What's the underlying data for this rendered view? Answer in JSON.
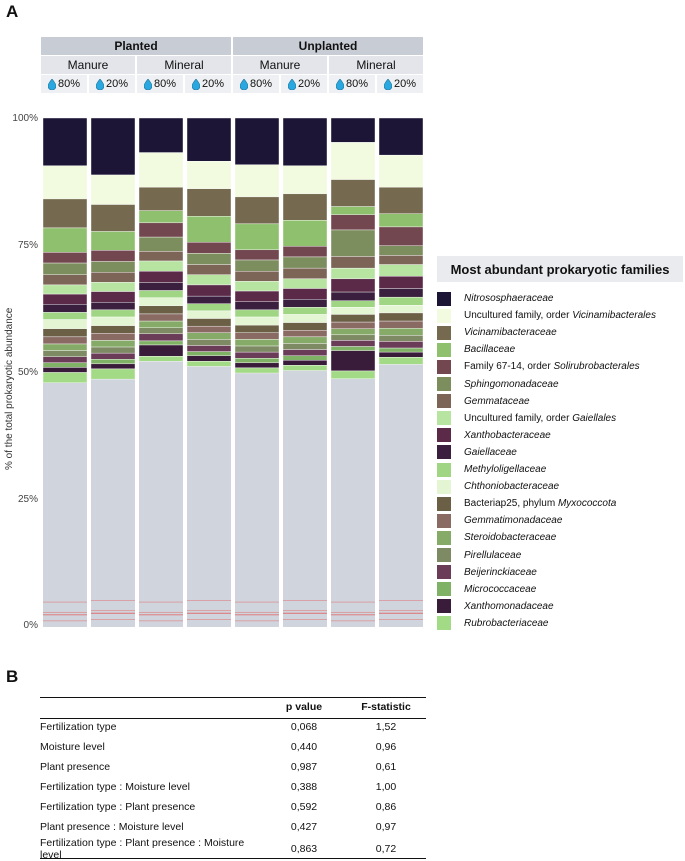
{
  "panels": {
    "a": "A",
    "b": "B"
  },
  "header": {
    "groups": [
      "Planted",
      "Unplanted"
    ],
    "fertilization": [
      "Manure",
      "Mineral",
      "Manure",
      "Mineral"
    ],
    "moisture": [
      "80%",
      "20%",
      "80%",
      "20%",
      "80%",
      "20%",
      "80%",
      "20%"
    ]
  },
  "colors": {
    "water_drop": "#29a8e0",
    "header_dark": "#c8ccd4",
    "header_light": "#e3e5ea",
    "other_gray": "#d0d4dc",
    "minor_lines": "#e07070"
  },
  "chart_data": {
    "type": "bar",
    "stacked": true,
    "ylabel": "% of the total prokaryotic abundance",
    "ylim": [
      0,
      100
    ],
    "yticks": [
      "0%",
      "25%",
      "50%",
      "75%",
      "100%"
    ],
    "legend_title": "Most abundant prokaryotic families",
    "legend_position": "right",
    "samples": [
      "Planted Manure 80%",
      "Planted Manure 20%",
      "Planted Mineral 80%",
      "Planted Mineral 20%",
      "Unplanted Manure 80%",
      "Unplanted Manure 20%",
      "Unplanted Mineral 80%",
      "Unplanted Mineral 20%"
    ],
    "series": [
      {
        "name": "Nitrososphaeraceae",
        "color": "#1d1535",
        "values": [
          9.4,
          11.2,
          6.8,
          8.5,
          9.2,
          9.4,
          4.8,
          7.3
        ]
      },
      {
        "name": "Uncultured family, order Vicinamibacterales",
        "color": "#f2fbdf",
        "values": [
          6.5,
          5.8,
          6.8,
          5.4,
          6.3,
          5.5,
          7.3,
          6.3
        ]
      },
      {
        "name": "Vicinamibacteraceae",
        "color": "#756a4f",
        "values": [
          5.7,
          5.3,
          4.6,
          5.4,
          5.3,
          5.2,
          5.3,
          5.2
        ]
      },
      {
        "name": "Bacillaceae",
        "color": "#8fc06e",
        "values": [
          4.8,
          3.7,
          2.4,
          5.1,
          5.1,
          5.1,
          1.6,
          2.6
        ]
      },
      {
        "name": "Family 67-14, order Solirubrobacterales",
        "color": "#72474f",
        "values": [
          2.1,
          2.2,
          2.8,
          2.2,
          2.0,
          2.1,
          3.0,
          3.7
        ]
      },
      {
        "name": "Sphingomonadaceae",
        "color": "#7d8e5e",
        "values": [
          2.3,
          2.1,
          2.8,
          2.2,
          2.2,
          2.2,
          5.2,
          1.9
        ]
      },
      {
        "name": "Gemmataceae",
        "color": "#7c6557",
        "values": [
          2.0,
          2.0,
          1.9,
          2.0,
          2.0,
          2.1,
          2.3,
          1.8
        ]
      },
      {
        "name": "Uncultured family, order Gaiellales",
        "color": "#b8e4a1",
        "values": [
          1.8,
          1.8,
          2.0,
          2.0,
          1.9,
          1.9,
          2.1,
          2.3
        ]
      },
      {
        "name": "Xanthobacteraceae",
        "color": "#5a2a48",
        "values": [
          2.0,
          2.1,
          2.2,
          2.2,
          2.1,
          2.1,
          2.6,
          2.4
        ]
      },
      {
        "name": "Gaiellaceae",
        "color": "#3a1f3e",
        "values": [
          1.6,
          1.5,
          1.6,
          1.5,
          1.6,
          1.6,
          1.7,
          1.7
        ]
      },
      {
        "name": "Methyloligellaceae",
        "color": "#a0d583",
        "values": [
          1.4,
          1.4,
          1.4,
          1.4,
          1.4,
          1.4,
          1.3,
          1.6
        ]
      },
      {
        "name": "Chthoniobacteraceae",
        "color": "#e3f5d3",
        "values": [
          1.8,
          1.7,
          1.6,
          1.5,
          1.6,
          1.6,
          1.4,
          1.5
        ]
      },
      {
        "name": "Bacteriap25, phylum Myxococcota",
        "color": "#6b5f45",
        "values": [
          1.6,
          1.5,
          1.6,
          1.5,
          1.5,
          1.5,
          1.5,
          1.6
        ]
      },
      {
        "name": "Gemmatimonadaceae",
        "color": "#8a6b64",
        "values": [
          1.4,
          1.4,
          1.4,
          1.3,
          1.3,
          1.3,
          1.3,
          1.4
        ]
      },
      {
        "name": "Steroidobacteraceae",
        "color": "#86ab68",
        "values": [
          1.3,
          1.3,
          1.3,
          1.3,
          1.3,
          1.3,
          1.2,
          1.4
        ]
      },
      {
        "name": "Pirellulaceae",
        "color": "#7d8a63",
        "values": [
          1.2,
          1.2,
          1.2,
          1.2,
          1.2,
          1.2,
          1.1,
          1.2
        ]
      },
      {
        "name": "Beijerinckiaceae",
        "color": "#6a3c58",
        "values": [
          1.2,
          1.2,
          1.4,
          1.2,
          1.2,
          1.2,
          1.2,
          1.3
        ]
      },
      {
        "name": "Micrococcaceae",
        "color": "#7fb265",
        "values": [
          0.9,
          0.9,
          0.8,
          0.8,
          0.9,
          0.9,
          0.8,
          0.8
        ]
      },
      {
        "name": "Xanthomonadaceae",
        "color": "#391c39",
        "values": [
          1.0,
          1.0,
          2.2,
          1.1,
          1.0,
          1.0,
          4.0,
          1.0
        ]
      },
      {
        "name": "Rubrobacteriaceae",
        "color": "#a3da85",
        "values": [
          2.0,
          2.0,
          1.0,
          1.0,
          1.0,
          1.0,
          1.5,
          1.4
        ]
      }
    ],
    "remainder_color": "#d0d4dc"
  },
  "legend_entries": [
    {
      "pre": "",
      "it": "Nitrososphaeraceae",
      "post": ""
    },
    {
      "pre": "Uncultured family, order ",
      "it": "Vicinamibacterales",
      "post": ""
    },
    {
      "pre": "",
      "it": "Vicinamibacteraceae",
      "post": ""
    },
    {
      "pre": "",
      "it": "Bacillaceae",
      "post": ""
    },
    {
      "pre": "Family 67-14, order ",
      "it": "Solirubrobacterales",
      "post": ""
    },
    {
      "pre": "",
      "it": "Sphingomonadaceae",
      "post": ""
    },
    {
      "pre": "",
      "it": "Gemmataceae",
      "post": ""
    },
    {
      "pre": "Uncultured family, order ",
      "it": "Gaiellales",
      "post": ""
    },
    {
      "pre": "",
      "it": "Xanthobacteraceae",
      "post": ""
    },
    {
      "pre": "",
      "it": "Gaiellaceae",
      "post": ""
    },
    {
      "pre": "",
      "it": "Methyloligellaceae",
      "post": ""
    },
    {
      "pre": "",
      "it": "Chthoniobacteraceae",
      "post": ""
    },
    {
      "pre": "Bacteriap25, phylum ",
      "it": "Myxococcota",
      "post": ""
    },
    {
      "pre": "",
      "it": "Gemmatimonadaceae",
      "post": ""
    },
    {
      "pre": "",
      "it": "Steroidobacteraceae",
      "post": ""
    },
    {
      "pre": "",
      "it": "Pirellulaceae",
      "post": ""
    },
    {
      "pre": "",
      "it": "Beijerinckiaceae",
      "post": ""
    },
    {
      "pre": "",
      "it": "Micrococcaceae",
      "post": ""
    },
    {
      "pre": "",
      "it": "Xanthomonadaceae",
      "post": ""
    },
    {
      "pre": "",
      "it": "Rubrobacteriaceae",
      "post": ""
    }
  ],
  "stats_table": {
    "headers": [
      "",
      "p value",
      "F-statistic"
    ],
    "rows": [
      [
        "Fertilization type",
        "0,068",
        "1,52"
      ],
      [
        "Moisture level",
        "0,440",
        "0,96"
      ],
      [
        "Plant presence",
        "0,987",
        "0,61"
      ],
      [
        "Fertilization type : Moisture level",
        "0,388",
        "1,00"
      ],
      [
        "Fertilization type : Plant presence",
        "0,592",
        "0,86"
      ],
      [
        "Plant presence : Moisture level",
        "0,427",
        "0,97"
      ],
      [
        "Fertilization type : Plant presence : Moisture level",
        "0,863",
        "0,72"
      ]
    ]
  }
}
